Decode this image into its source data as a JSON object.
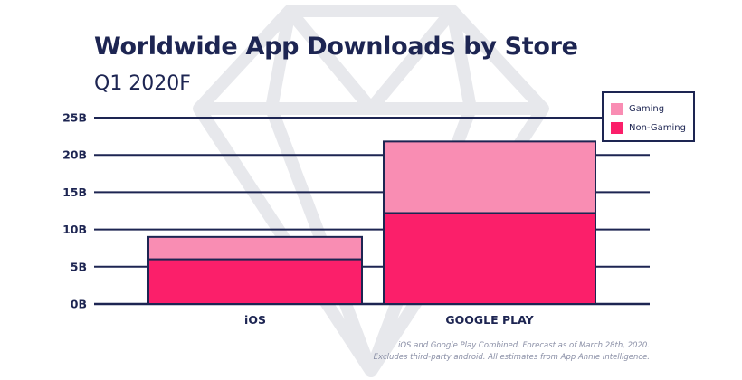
{
  "title": "Worldwide App Downloads by Store",
  "subtitle": "Q1 2020F",
  "footnote": [
    "iOS and Google Play Combined. Forecast as of March 28th, 2020.",
    "Excludes third-party android. All estimates from App Annie Intelligence."
  ],
  "colors": {
    "gaming": "#f98db3",
    "non_gaming": "#fb1f6a",
    "ink": "#1d2552",
    "watermark": "#dfe1e6"
  },
  "chart_data": {
    "type": "bar",
    "stacked": true,
    "categories": [
      "iOS",
      "GOOGLE PLAY"
    ],
    "series": [
      {
        "name": "Non-Gaming",
        "values": [
          6,
          12.2
        ]
      },
      {
        "name": "Gaming",
        "values": [
          3,
          9.6
        ]
      }
    ],
    "ylim": [
      0,
      25
    ],
    "yticks": [
      "0B",
      "5B",
      "10B",
      "15B",
      "20B",
      "25B"
    ],
    "grid": true,
    "legend": "top-right"
  }
}
